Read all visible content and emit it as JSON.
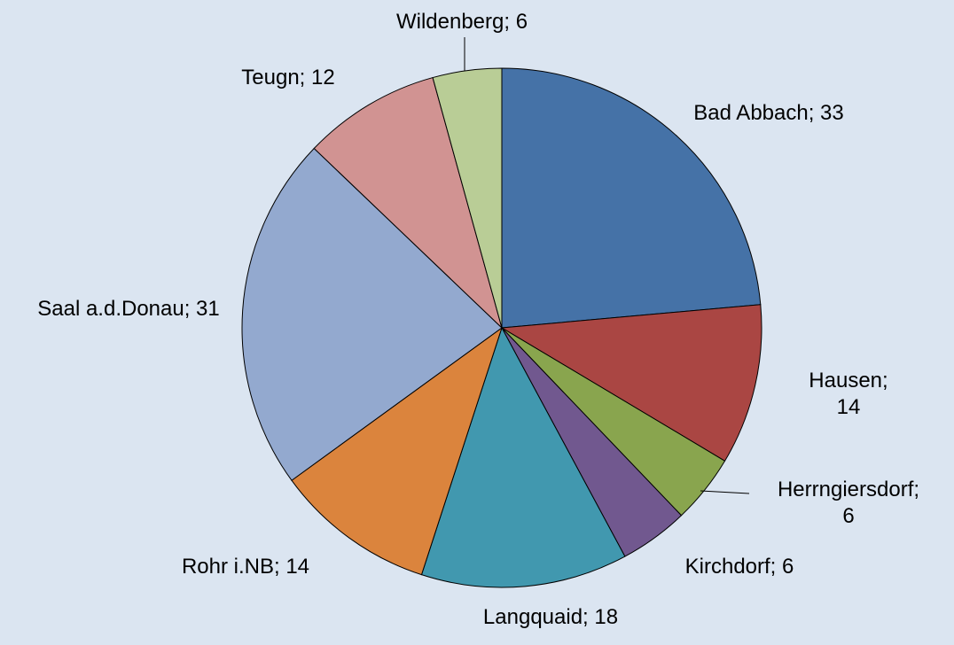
{
  "chart_data": {
    "type": "pie",
    "values": [
      33,
      14,
      6,
      6,
      18,
      14,
      31,
      12,
      6
    ],
    "value_labels": [
      "Bad Abbach; 33",
      "Hausen; 14",
      "Herrngiersdorf; 6",
      "Kirchdorf; 6",
      "Langquaid; 18",
      "Rohr i.NB; 14",
      "Saal a.d.Donau; 31",
      "Teugn; 12",
      "Wildenberg; 6"
    ],
    "colors": [
      "#4572a7",
      "#aa4643",
      "#89a54e",
      "#71588f",
      "#4198af",
      "#db843d",
      "#93a9cf",
      "#d19392",
      "#b9cd96"
    ]
  }
}
